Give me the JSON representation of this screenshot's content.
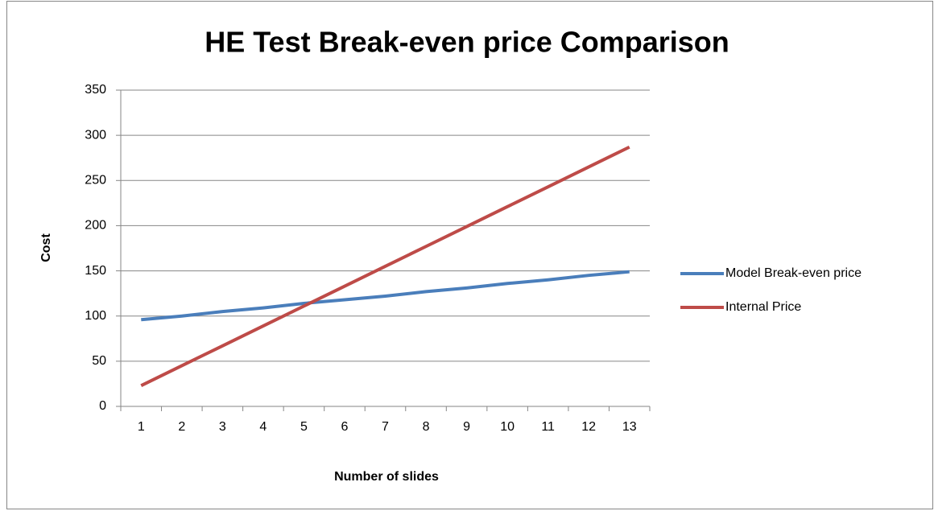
{
  "chart_data": {
    "type": "line",
    "title": "HE Test Break-even price Comparison",
    "x_label": "Number of slides",
    "y_label": "Cost",
    "categories": [
      "1",
      "2",
      "3",
      "4",
      "5",
      "6",
      "7",
      "8",
      "9",
      "10",
      "11",
      "12",
      "13"
    ],
    "series": [
      {
        "name": "Model Break-even price",
        "color": "#4a7ebb",
        "values": [
          96,
          100,
          105,
          109,
          114,
          118,
          122,
          127,
          131,
          136,
          140,
          145,
          149
        ]
      },
      {
        "name": "Internal Price",
        "color": "#be4b48",
        "values": [
          23,
          45,
          67,
          89,
          111,
          133,
          155,
          177,
          199,
          221,
          243,
          265,
          287
        ]
      }
    ],
    "ylim": [
      0,
      350
    ],
    "yticks": [
      0,
      50,
      100,
      150,
      200,
      250,
      300,
      350
    ],
    "grid": true,
    "legend": "right"
  }
}
